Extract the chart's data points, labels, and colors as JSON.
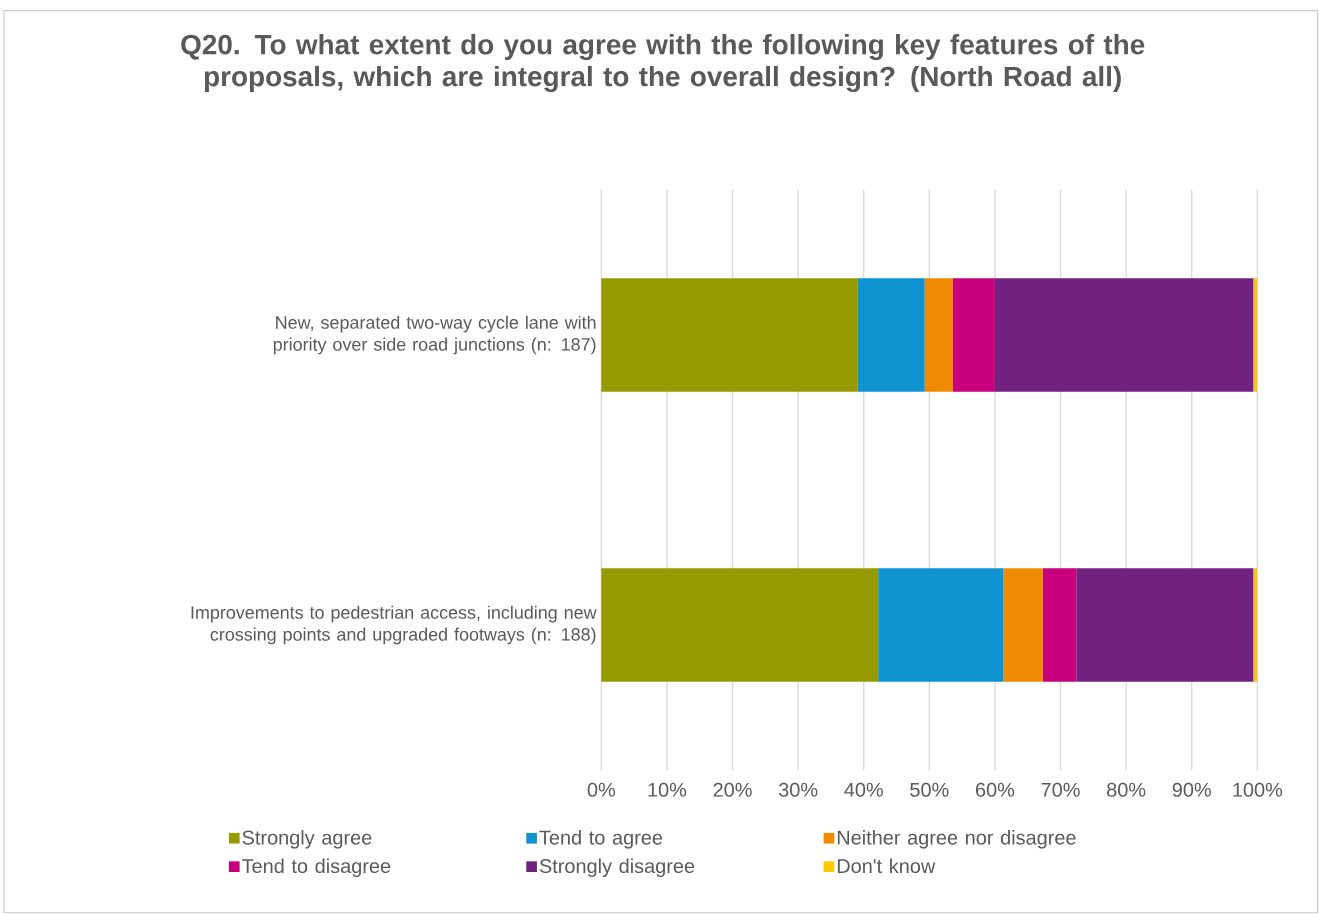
{
  "chart_data": {
    "type": "bar",
    "orientation": "horizontal",
    "stacked": true,
    "title": "Q20. To what extent do you agree with the following key features of the proposals, which are integral to the overall design? (North Road all)",
    "categories": [
      "New, separated two-way cycle lane with priority over side road junctions (n: 187)",
      "Improvements to pedestrian access, including new crossing points and upgraded footways (n: 188)"
    ],
    "series": [
      {
        "name": "Strongly agree",
        "color": "#949a00",
        "values": [
          39.1,
          42.2
        ]
      },
      {
        "name": "Tend to agree",
        "color": "#0f92d0",
        "values": [
          10.2,
          19.1
        ]
      },
      {
        "name": "Neither agree nor disagree",
        "color": "#f08a00",
        "values": [
          4.3,
          6.0
        ]
      },
      {
        "name": "Tend to disagree",
        "color": "#c8007d",
        "values": [
          6.4,
          5.1
        ]
      },
      {
        "name": "Strongly disagree",
        "color": "#71217f",
        "values": [
          39.4,
          27.0
        ]
      },
      {
        "name": "Don't know",
        "color": "#ffc800",
        "values": [
          0.6,
          0.6
        ]
      }
    ],
    "xlim": [
      0,
      100
    ],
    "xticks": [
      {
        "value": 0,
        "label": "0%"
      },
      {
        "value": 10,
        "label": "10%"
      },
      {
        "value": 20,
        "label": "20%"
      },
      {
        "value": 30,
        "label": "30%"
      },
      {
        "value": 40,
        "label": "40%"
      },
      {
        "value": 50,
        "label": "50%"
      },
      {
        "value": 60,
        "label": "60%"
      },
      {
        "value": 70,
        "label": "70%"
      },
      {
        "value": 80,
        "label": "80%"
      },
      {
        "value": 90,
        "label": "90%"
      },
      {
        "value": 100,
        "label": "100%"
      }
    ],
    "grid": "x",
    "legend": "bottom"
  }
}
